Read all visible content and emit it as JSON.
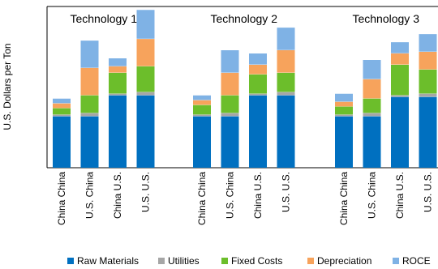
{
  "chart_data": {
    "type": "bar",
    "stacked": true,
    "title": "",
    "xlabel": "",
    "ylabel": "U.S. Dollars per Ton",
    "y_ticks_shown": false,
    "grid": false,
    "legend_position": "bottom",
    "ylim": [
      0,
      100
    ],
    "groups": [
      {
        "name": "Technology 1",
        "categories": [
          "China China",
          "U.S. China",
          "China U.S.",
          "U.S. U.S."
        ],
        "series": [
          {
            "name": "Raw Materials",
            "values": [
              32,
              32,
              45,
              45
            ]
          },
          {
            "name": "Utilities",
            "values": [
              1,
              2,
              1,
              2
            ]
          },
          {
            "name": "Fixed Costs",
            "values": [
              4,
              11,
              13,
              16
            ]
          },
          {
            "name": "Depreciation",
            "values": [
              3,
              17,
              4,
              17
            ]
          },
          {
            "name": "ROCE",
            "values": [
              3,
              17,
              5,
              18
            ]
          }
        ]
      },
      {
        "name": "Technology 2",
        "categories": [
          "China China",
          "U.S. China",
          "China U.S.",
          "U.S. U.S."
        ],
        "series": [
          {
            "name": "Raw Materials",
            "values": [
              32,
              32,
              45,
              45
            ]
          },
          {
            "name": "Utilities",
            "values": [
              1,
              2,
              1,
              2
            ]
          },
          {
            "name": "Fixed Costs",
            "values": [
              6,
              11,
              12,
              12
            ]
          },
          {
            "name": "Depreciation",
            "values": [
              3,
              14,
              6,
              14
            ]
          },
          {
            "name": "ROCE",
            "values": [
              3,
              14,
              7,
              14
            ]
          }
        ]
      },
      {
        "name": "Technology 3",
        "categories": [
          "China China",
          "U.S. China",
          "China U.S.",
          "U.S. U.S."
        ],
        "series": [
          {
            "name": "Raw Materials",
            "values": [
              32,
              32,
              44,
              44
            ]
          },
          {
            "name": "Utilities",
            "values": [
              1,
              2,
              1,
              2
            ]
          },
          {
            "name": "Fixed Costs",
            "values": [
              5,
              9,
              19,
              15
            ]
          },
          {
            "name": "Depreciation",
            "values": [
              3,
              12,
              7,
              11
            ]
          },
          {
            "name": "ROCE",
            "values": [
              5,
              12,
              7,
              11
            ]
          }
        ]
      }
    ],
    "legend": [
      {
        "name": "Raw Materials",
        "color": "#0070C0"
      },
      {
        "name": "Utilities",
        "color": "#A6A6A6"
      },
      {
        "name": "Fixed Costs",
        "color": "#6CBE2B"
      },
      {
        "name": "Depreciation",
        "color": "#F7A35C"
      },
      {
        "name": "ROCE",
        "color": "#7FB2E5"
      }
    ]
  }
}
